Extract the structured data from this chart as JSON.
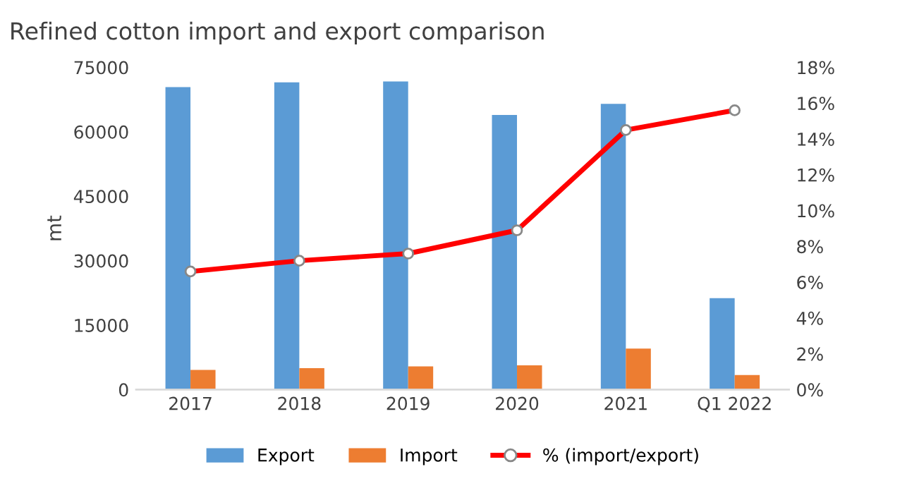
{
  "chart_data": {
    "type": "bar",
    "title": "Refined cotton import and export comparison",
    "ylabel": "mt",
    "categories": [
      "2017",
      "2018",
      "2019",
      "2020",
      "2021",
      "Q1 2022"
    ],
    "series": [
      {
        "name": "Export",
        "color": "#5b9bd5",
        "values": [
          70400,
          71500,
          71700,
          63900,
          66500,
          21300
        ]
      },
      {
        "name": "Import",
        "color": "#ed7d31",
        "values": [
          4600,
          5000,
          5400,
          5650,
          9550,
          3400
        ]
      },
      {
        "name": "% (import/export)",
        "type": "line",
        "axis": "y2",
        "color": "#ff0000",
        "marker": "circle",
        "values": [
          6.6,
          7.2,
          7.6,
          8.9,
          14.5,
          15.6
        ]
      }
    ],
    "ylim": [
      0,
      75000
    ],
    "yticks": [
      0,
      15000,
      30000,
      45000,
      60000,
      75000
    ],
    "y2lim": [
      0,
      18
    ],
    "y2ticks": [
      {
        "value": 0,
        "label": "0%"
      },
      {
        "value": 2,
        "label": "2%"
      },
      {
        "value": 4,
        "label": "4%"
      },
      {
        "value": 6,
        "label": "6%"
      },
      {
        "value": 8,
        "label": "8%"
      },
      {
        "value": 10,
        "label": "10%"
      },
      {
        "value": 12,
        "label": "12%"
      },
      {
        "value": 14,
        "label": "14%"
      },
      {
        "value": 16,
        "label": "16%"
      },
      {
        "value": 18,
        "label": "18%"
      }
    ],
    "grid": false,
    "legend": "bottom"
  }
}
